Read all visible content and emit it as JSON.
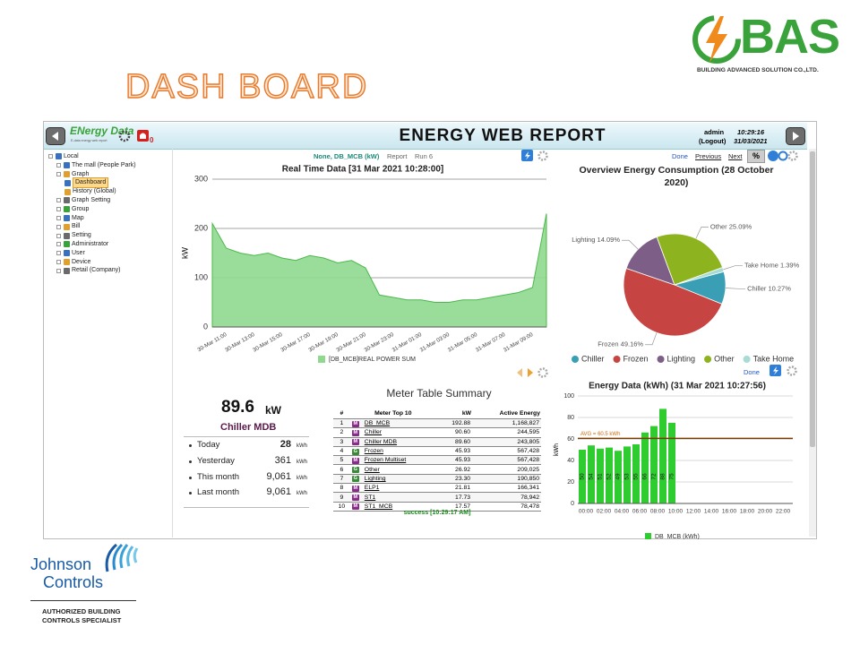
{
  "slide": {
    "title": "DASH BOARD",
    "company_logo": "BAS",
    "company_name": "BUILDING ADVANCED SOLUTION CO.,LTD.",
    "partner_logo": [
      "Johnson",
      "Controls"
    ],
    "partner_tagline": [
      "AUTHORIZED BUILDING",
      "CONTROLS SPECIALIST"
    ]
  },
  "app": {
    "logo": "ENergy Data",
    "logo_tagline": "E-data energy web report",
    "alarm_count": "0",
    "title": "ENERGY WEB REPORT",
    "user": "admin",
    "logout": "(Logout)",
    "time": "10:29:16",
    "date": "31/03/2021"
  },
  "nav_tree": {
    "label": "Local",
    "children": [
      {
        "label": "The mall (People Park)"
      },
      {
        "label": "Graph",
        "children": [
          {
            "label": "Dashboard"
          },
          {
            "label": "History (Global)"
          }
        ]
      },
      {
        "label": "Graph Setting"
      },
      {
        "label": "Group"
      },
      {
        "label": "Map"
      },
      {
        "label": "Bill"
      },
      {
        "label": "Setting"
      },
      {
        "label": "Administrator"
      },
      {
        "label": "User"
      },
      {
        "label": "Device"
      },
      {
        "label": "Retail (Company)"
      }
    ]
  },
  "toolbar": {
    "selection": "None, DB_MCB (kW)",
    "report": "Report",
    "run": "Run 6",
    "pager": [
      "Done",
      "Previous",
      "Next",
      "%"
    ],
    "pie_done": "Done"
  },
  "kpi": {
    "value": "89.6",
    "unit": "kW",
    "name": "Chiller MDB",
    "rows": [
      [
        "Today",
        "28",
        "kWh"
      ],
      [
        "Yesterday",
        "361",
        "kWh"
      ],
      [
        "This month",
        "9,061",
        "kWh"
      ],
      [
        "Last month",
        "9,061",
        "kWh"
      ]
    ]
  },
  "table": {
    "title": "Meter Table Summary",
    "columns": [
      "#",
      "Meter Top 10",
      "kW",
      "Active Energy"
    ],
    "rows": [
      [
        "1",
        "M",
        "DB_MCB",
        "192.88",
        "1,168,827"
      ],
      [
        "2",
        "M",
        "Chiller",
        "90.60",
        "244,595"
      ],
      [
        "3",
        "M",
        "Chiller MDB",
        "89.60",
        "243,805"
      ],
      [
        "4",
        "G",
        "Frozen",
        "45.93",
        "567,428"
      ],
      [
        "5",
        "M",
        "Frozen Multiset",
        "45.93",
        "567,428"
      ],
      [
        "6",
        "G",
        "Other",
        "26.92",
        "209,025"
      ],
      [
        "7",
        "G",
        "Lighting",
        "23.30",
        "190,850"
      ],
      [
        "8",
        "M",
        "ELP1",
        "21.81",
        "166,341"
      ],
      [
        "9",
        "M",
        "ST1",
        "17.73",
        "78,942"
      ],
      [
        "10",
        "M",
        "ST1_MCB",
        "17.57",
        "78,478"
      ]
    ],
    "status": "success [10:29:17 AM]"
  },
  "chart_data": [
    {
      "type": "area",
      "title": "Real Time Data [31 Mar 2021 10:28:00]",
      "y_label": "kW",
      "categories": [
        null,
        "30-Mar 11:00",
        null,
        "30-Mar 13:00",
        null,
        "30-Mar 15:00",
        null,
        "30-Mar 17:00",
        null,
        "30-Mar 19:00",
        null,
        "30-Mar 21:00",
        null,
        "30-Mar 23:00",
        null,
        "31-Mar 01:00",
        null,
        "31-Mar 03:00",
        null,
        "31-Mar 05:00",
        null,
        "31-Mar 07:00",
        null,
        "31-Mar 09:00",
        null
      ],
      "series": [
        {
          "name": "[DB_MCB]REAL POWER SUM",
          "color": "#8fd98f",
          "values": [
            210,
            160,
            150,
            145,
            150,
            140,
            135,
            145,
            140,
            130,
            135,
            120,
            65,
            60,
            55,
            55,
            50,
            50,
            55,
            55,
            60,
            65,
            70,
            80,
            230
          ]
        }
      ],
      "ylim": [
        0,
        300
      ],
      "yticks": [
        0,
        100,
        200,
        300
      ],
      "grid": true
    },
    {
      "type": "pie",
      "title": "Overview Energy Consumption (28 October 2020)",
      "categories": [
        "Chiller",
        "Frozen",
        "Lighting",
        "Other",
        "Take Home"
      ],
      "values": [
        10.27,
        49.16,
        14.09,
        25.09,
        1.39
      ],
      "value_labels": [
        "Chiller 10.27%",
        "Frozen 49.16%",
        "Lighting 14.09%",
        "Other 25.09%",
        "Take Home 1.39%"
      ],
      "colors": [
        "#3a9fb5",
        "#c64542",
        "#7d5e87",
        "#8db31e",
        "#a6dcd4"
      ]
    },
    {
      "type": "bar",
      "title": "Energy Data (kWh) (31 Mar 2021 10:27:56)",
      "y_label": "kWh",
      "categories": [
        "00:00",
        null,
        "02:00",
        null,
        "04:00",
        null,
        "06:00",
        null,
        "08:00",
        null,
        "10:00",
        null,
        "12:00",
        null,
        "14:00",
        null,
        "16:00",
        null,
        "18:00",
        null,
        "20:00",
        null,
        "22:00",
        null
      ],
      "series": [
        {
          "name": "DB_MCB (kWh)",
          "color": "#2ecc2e",
          "values": [
            50,
            54,
            51,
            52,
            49,
            53,
            55,
            66,
            72,
            88,
            75,
            null,
            null,
            null,
            null,
            null,
            null,
            null,
            null,
            null,
            null,
            null,
            null,
            null
          ]
        }
      ],
      "ylim": [
        0,
        100
      ],
      "yticks": [
        0,
        20,
        40,
        60,
        80,
        100
      ],
      "grid": true,
      "average": {
        "value": 60.5,
        "label": "AVG = 60.5 kWh",
        "color": "#7a3b00"
      }
    }
  ]
}
